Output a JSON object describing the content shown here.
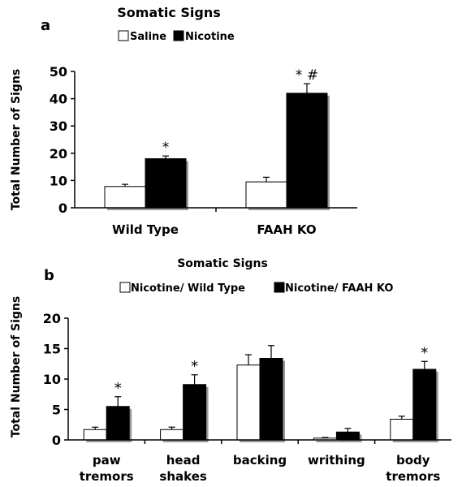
{
  "chart_data": [
    {
      "panel_label": "a",
      "type": "bar",
      "title": "Somatic Signs",
      "ylabel": "Total Number of Signs",
      "xlabel": "",
      "ylim": [
        0,
        50
      ],
      "yticks": [
        0,
        10,
        20,
        30,
        40,
        50
      ],
      "grid": false,
      "legend_position": "top",
      "categories": [
        "Wild Type",
        "FAAH KO"
      ],
      "series": [
        {
          "name": "Saline",
          "color": "#ffffff",
          "values": [
            7.8,
            9.5
          ],
          "errors": [
            0.8,
            1.7
          ]
        },
        {
          "name": "Nicotine",
          "color": "#000000",
          "values": [
            18.0,
            42.0
          ],
          "errors": [
            1.0,
            3.5
          ]
        }
      ],
      "annotations": [
        {
          "category": 0,
          "series": 1,
          "text": "*"
        },
        {
          "category": 1,
          "series": 1,
          "text": "* #"
        }
      ]
    },
    {
      "panel_label": "b",
      "type": "bar",
      "title": "Somatic Signs",
      "ylabel": "Total Number of Signs",
      "xlabel": "",
      "ylim": [
        0,
        20
      ],
      "yticks": [
        0,
        5,
        10,
        15,
        20
      ],
      "grid": false,
      "legend_position": "top",
      "categories": [
        [
          "paw",
          "tremors"
        ],
        [
          "head",
          "shakes"
        ],
        [
          "backing"
        ],
        [
          "writhing"
        ],
        [
          "body",
          "tremors"
        ]
      ],
      "series": [
        {
          "name": "Nicotine/ Wild Type",
          "color": "#ffffff",
          "values": [
            1.7,
            1.7,
            12.3,
            0.3,
            3.4
          ],
          "errors": [
            0.4,
            0.4,
            1.7,
            0.1,
            0.5
          ]
        },
        {
          "name": "Nicotine/ FAAH KO",
          "color": "#000000",
          "values": [
            5.5,
            9.1,
            13.4,
            1.3,
            11.6
          ],
          "errors": [
            1.6,
            1.6,
            2.1,
            0.6,
            1.3
          ]
        }
      ],
      "annotations": [
        {
          "category": 0,
          "series": 1,
          "text": "*"
        },
        {
          "category": 1,
          "series": 1,
          "text": "*"
        },
        {
          "category": 4,
          "series": 1,
          "text": "*"
        }
      ]
    }
  ]
}
